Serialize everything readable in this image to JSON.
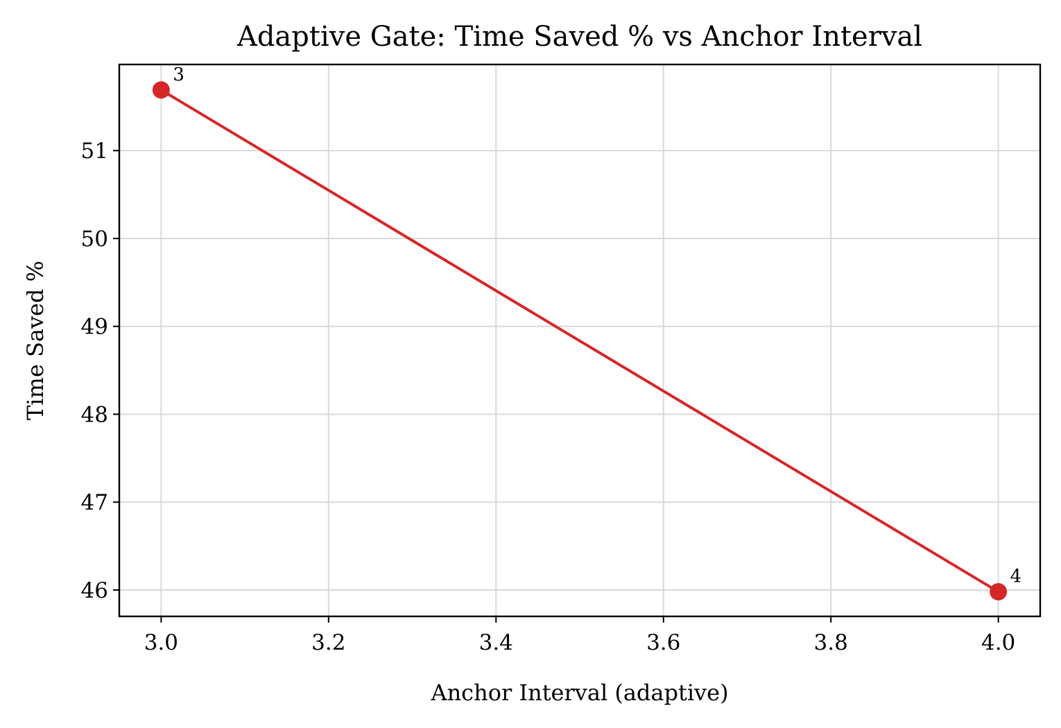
{
  "chart_data": {
    "type": "line",
    "title": "Adaptive Gate: Time Saved % vs Anchor Interval",
    "xlabel": "Anchor Interval (adaptive)",
    "ylabel": "Time Saved %",
    "xlim": [
      2.95,
      4.05
    ],
    "ylim": [
      45.7,
      51.98
    ],
    "x_ticks": [
      3.0,
      3.2,
      3.4,
      3.6,
      3.8,
      4.0
    ],
    "x_tick_labels": [
      "3.0",
      "3.2",
      "3.4",
      "3.6",
      "3.8",
      "4.0"
    ],
    "y_ticks": [
      46,
      47,
      48,
      49,
      50,
      51
    ],
    "y_tick_labels": [
      "46",
      "47",
      "48",
      "49",
      "50",
      "51"
    ],
    "grid": true,
    "series": [
      {
        "color": "#d62728",
        "marker": "circle",
        "points": [
          {
            "x": 3,
            "y": 51.69,
            "label": "3"
          },
          {
            "x": 4,
            "y": 45.98,
            "label": "4"
          }
        ]
      }
    ]
  }
}
